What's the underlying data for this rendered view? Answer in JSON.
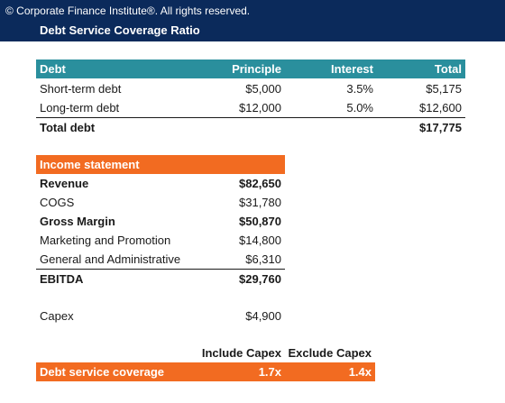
{
  "header": {
    "copyright": "© Corporate Finance Institute®. All rights reserved.",
    "title": "Debt Service Coverage Ratio"
  },
  "debt": {
    "columns": [
      "Debt",
      "Principle",
      "Interest",
      "Total"
    ],
    "rows": [
      {
        "name": "Short-term debt",
        "principle": "$5,000",
        "interest": "3.5%",
        "total": "$5,175"
      },
      {
        "name": "Long-term debt",
        "principle": "$12,000",
        "interest": "5.0%",
        "total": "$12,600"
      }
    ],
    "total": {
      "name": "Total debt",
      "total": "$17,775"
    }
  },
  "income": {
    "header": "Income statement",
    "rows": [
      {
        "name": "Revenue",
        "value": "$82,650"
      },
      {
        "name": "COGS",
        "value": "$31,780"
      },
      {
        "name": "Gross Margin",
        "value": "$50,870"
      },
      {
        "name": "Marketing and Promotion",
        "value": "$14,800"
      },
      {
        "name": "General and Administrative",
        "value": "$6,310"
      },
      {
        "name": "EBITDA",
        "value": "$29,760"
      }
    ],
    "capex": {
      "name": "Capex",
      "value": "$4,900"
    }
  },
  "coverage": {
    "include_label": "Include Capex",
    "exclude_label": "Exclude Capex",
    "name": "Debt service coverage",
    "include_value": "1.7x",
    "exclude_value": "1.4x"
  },
  "colors": {
    "header_bg": "#0b2a5b",
    "debt_header": "#2a8f9d",
    "accent_orange": "#f26b21"
  }
}
